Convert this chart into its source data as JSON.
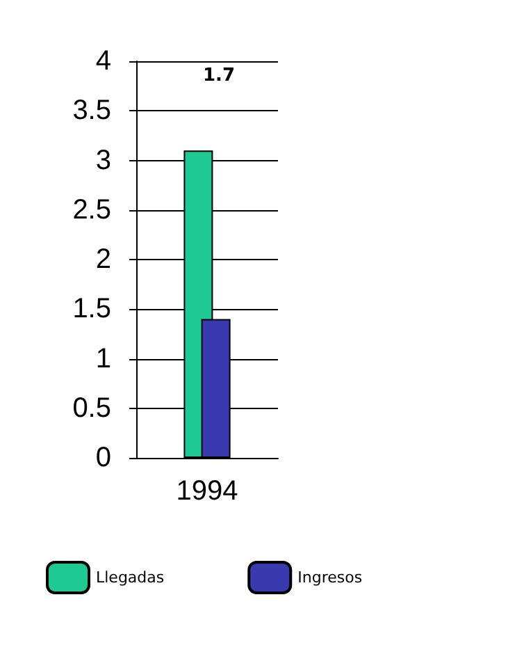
{
  "chart_data": {
    "type": "bar",
    "categories": [
      "1994"
    ],
    "series": [
      {
        "name": "Llegadas",
        "color": "#1fc993",
        "values": [
          3.1
        ]
      },
      {
        "name": "Ingresos",
        "color": "#3a3ab0",
        "values": [
          1.4
        ]
      }
    ],
    "ylim": [
      0,
      4
    ],
    "yticks": [
      0,
      0.5,
      1,
      1.5,
      2,
      2.5,
      3,
      3.5,
      4
    ],
    "grid": "y",
    "legend": "bottom",
    "annotations": [
      "1.7"
    ]
  }
}
